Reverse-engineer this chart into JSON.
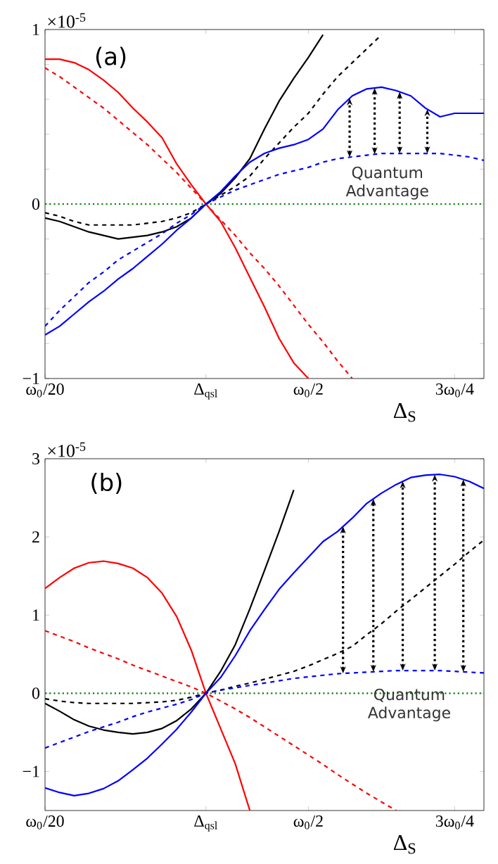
{
  "chart_data": [
    {
      "type": "line",
      "xlabel": "Δ$_{S}$",
      "ylim": [
        -1,
        1
      ],
      "categories": [
        "ω$_{0}$/20",
        null,
        null,
        null,
        null,
        null,
        null,
        null,
        null,
        null,
        null,
        "Δ$_{qsl}$",
        null,
        null,
        null,
        null,
        null,
        null,
        "ω$_{0}$/2",
        null,
        null,
        null,
        null,
        null,
        null,
        null,
        null,
        null,
        "3ω$_{0}$/4",
        null,
        null
      ],
      "yticks": [
        {
          "value": -1,
          "label": "−1"
        },
        {
          "value": -0.8,
          "label": null
        },
        {
          "value": -0.6,
          "label": null
        },
        {
          "value": -0.4,
          "label": null
        },
        {
          "value": -0.2,
          "label": null
        },
        0,
        {
          "value": 0.2,
          "label": null
        },
        {
          "value": 0.4,
          "label": null
        },
        {
          "value": 0.6,
          "label": null
        },
        {
          "value": 0.8,
          "label": null
        },
        1
      ],
      "annotations": [
        "(a)",
        "×10$^{-5}$",
        "Quantum Advantage"
      ],
      "ref_lines": [
        {
          "axis": "y",
          "value": 0,
          "color": "#008000",
          "line_style": "dotted"
        }
      ],
      "series": [
        {
          "color": "#ff0000",
          "line_style": "solid",
          "values": [
            0.83,
            0.83,
            0.81,
            0.77,
            0.71,
            0.64,
            0.55,
            0.47,
            0.38,
            0.23,
            0.11,
            0,
            -0.1,
            -0.25,
            -0.42,
            -0.59,
            -0.77,
            -0.91,
            -1,
            null,
            null,
            null,
            null,
            null,
            null,
            null,
            null,
            null,
            null,
            null,
            null
          ]
        },
        {
          "color": "#ff0000",
          "line_style": "dashed",
          "values": [
            0.78,
            0.73,
            0.67,
            0.61,
            0.55,
            0.48,
            0.41,
            0.34,
            0.26,
            0.18,
            0.09,
            0,
            -0.09,
            -0.18,
            -0.28,
            -0.37,
            -0.47,
            -0.58,
            -0.69,
            -0.79,
            -0.9,
            -1,
            null,
            null,
            null,
            null,
            null,
            null,
            null,
            null,
            null
          ]
        },
        {
          "color": "#000000",
          "line_style": "solid",
          "values": [
            -0.08,
            -0.1,
            -0.13,
            -0.16,
            -0.18,
            -0.2,
            -0.19,
            -0.18,
            -0.16,
            -0.13,
            -0.08,
            0,
            0.06,
            0.15,
            0.26,
            0.43,
            0.59,
            0.72,
            0.84,
            0.97,
            null,
            null,
            null,
            null,
            null,
            null,
            null,
            null,
            null,
            null,
            null
          ]
        },
        {
          "color": "#000000",
          "line_style": "dashed",
          "values": [
            -0.05,
            -0.07,
            -0.1,
            -0.12,
            -0.12,
            -0.12,
            -0.12,
            -0.11,
            -0.1,
            -0.08,
            -0.05,
            0,
            0.05,
            0.1,
            0.16,
            0.26,
            0.35,
            0.44,
            0.52,
            0.63,
            0.73,
            0.81,
            0.89,
            0.97,
            null,
            null,
            null,
            null,
            null,
            null,
            null
          ]
        },
        {
          "color": "#0000ff",
          "line_style": "solid",
          "values": [
            -0.75,
            -0.7,
            -0.63,
            -0.56,
            -0.5,
            -0.43,
            -0.37,
            -0.3,
            -0.23,
            -0.15,
            -0.08,
            0,
            0.07,
            0.16,
            0.24,
            0.29,
            0.32,
            0.34,
            0.37,
            0.43,
            0.54,
            0.62,
            0.66,
            0.67,
            0.65,
            0.62,
            0.55,
            0.5,
            0.52,
            0.52,
            0.52
          ]
        },
        {
          "color": "#0000ff",
          "line_style": "dashed",
          "values": [
            -0.7,
            -0.61,
            -0.53,
            -0.45,
            -0.39,
            -0.32,
            -0.27,
            -0.22,
            -0.17,
            -0.11,
            -0.06,
            0,
            0.04,
            0.08,
            0.11,
            0.14,
            0.17,
            0.19,
            0.21,
            0.24,
            0.26,
            0.27,
            0.28,
            0.29,
            0.29,
            0.29,
            0.29,
            0.29,
            0.28,
            0.27,
            0.25
          ]
        }
      ]
    },
    {
      "type": "line",
      "xlabel": "Δ$_{S}$",
      "ylim": [
        -1.5,
        3
      ],
      "categories": [
        "ω$_{0}$/20",
        null,
        null,
        null,
        null,
        null,
        null,
        null,
        null,
        null,
        null,
        "Δ$_{qsl}$",
        null,
        null,
        null,
        null,
        null,
        null,
        "ω$_{0}$/2",
        null,
        null,
        null,
        null,
        null,
        null,
        null,
        null,
        null,
        "3ω$_{0}$/4",
        null,
        null
      ],
      "yticks": [
        {
          "value": -1,
          "label": "−1"
        },
        0,
        1,
        2,
        3
      ],
      "annotations": [
        "(b)",
        "×10$^{-5}$",
        "Quantum Advantage"
      ],
      "ref_lines": [
        {
          "axis": "y",
          "value": 0,
          "color": "#008000",
          "line_style": "dotted"
        }
      ],
      "series": [
        {
          "color": "#ff0000",
          "line_style": "solid",
          "values": [
            1.34,
            1.48,
            1.6,
            1.67,
            1.69,
            1.66,
            1.6,
            1.48,
            1.28,
            0.98,
            0.55,
            0,
            -0.45,
            -0.9,
            -1.5,
            null,
            null,
            null,
            null,
            null,
            null,
            null,
            null,
            null,
            null,
            null,
            null,
            null,
            null,
            null,
            null
          ]
        },
        {
          "color": "#ff0000",
          "line_style": "dashed",
          "values": [
            0.8,
            0.73,
            0.66,
            0.58,
            0.51,
            0.44,
            0.36,
            0.29,
            0.22,
            0.15,
            0.08,
            0,
            -0.1,
            -0.2,
            -0.31,
            -0.43,
            -0.55,
            -0.67,
            -0.79,
            -0.91,
            -1.04,
            -1.16,
            -1.28,
            -1.39,
            -1.5,
            null,
            null,
            null,
            null,
            null,
            null
          ]
        },
        {
          "color": "#000000",
          "line_style": "solid",
          "values": [
            -0.13,
            -0.23,
            -0.34,
            -0.42,
            -0.47,
            -0.5,
            -0.52,
            -0.5,
            -0.45,
            -0.35,
            -0.2,
            0,
            0.28,
            0.62,
            1.08,
            1.57,
            2.07,
            2.6,
            null,
            null,
            null,
            null,
            null,
            null,
            null,
            null,
            null,
            null,
            null,
            null,
            null
          ]
        },
        {
          "color": "#000000",
          "line_style": "dashed",
          "values": [
            -0.07,
            -0.1,
            -0.12,
            -0.13,
            -0.13,
            -0.13,
            -0.13,
            -0.12,
            -0.11,
            -0.09,
            -0.05,
            0,
            0.04,
            0.09,
            0.13,
            0.18,
            0.23,
            0.28,
            0.35,
            0.43,
            0.51,
            0.6,
            0.75,
            0.89,
            1.05,
            1.2,
            1.35,
            1.5,
            1.65,
            1.81,
            1.96
          ]
        },
        {
          "color": "#0000ff",
          "line_style": "solid",
          "values": [
            -1.21,
            -1.27,
            -1.31,
            -1.28,
            -1.22,
            -1.12,
            -0.98,
            -0.83,
            -0.65,
            -0.46,
            -0.24,
            0,
            0.2,
            0.48,
            0.8,
            1.07,
            1.33,
            1.54,
            1.74,
            1.94,
            2.07,
            2.24,
            2.43,
            2.56,
            2.67,
            2.76,
            2.79,
            2.8,
            2.77,
            2.71,
            2.62
          ]
        },
        {
          "color": "#0000ff",
          "line_style": "dashed",
          "values": [
            -0.7,
            -0.63,
            -0.56,
            -0.49,
            -0.43,
            -0.37,
            -0.3,
            -0.24,
            -0.19,
            -0.14,
            -0.08,
            0,
            0.04,
            0.07,
            0.1,
            0.13,
            0.16,
            0.19,
            0.21,
            0.23,
            0.25,
            0.26,
            0.27,
            0.28,
            0.29,
            0.29,
            0.29,
            0.29,
            0.28,
            0.27,
            0.26
          ]
        }
      ]
    }
  ]
}
